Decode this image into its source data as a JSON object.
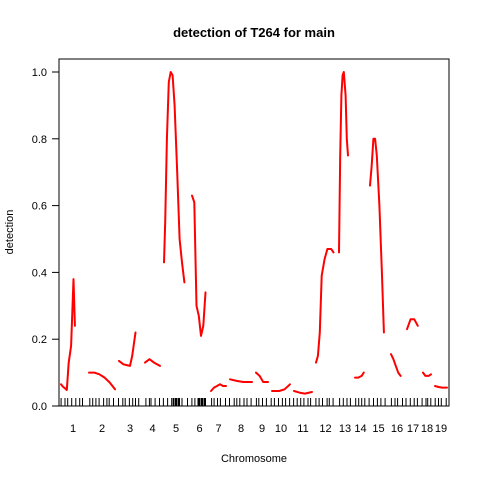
{
  "chart_data": {
    "type": "line",
    "title": "detection of T264 for main",
    "xlabel": "Chromosome",
    "ylabel": "detection",
    "ylim": [
      0,
      1.0
    ],
    "y_ticks": [
      "0.0",
      "0.2",
      "0.4",
      "0.6",
      "0.8",
      "1.0"
    ],
    "y_tick_values": [
      0,
      0.2,
      0.4,
      0.6,
      0.8,
      1.0
    ],
    "categories": [
      "1",
      "2",
      "3",
      "4",
      "5",
      "6",
      "7",
      "8",
      "9",
      "10",
      "11",
      "12",
      "13",
      "14",
      "15",
      "16",
      "17",
      "18",
      "19"
    ],
    "grid": false,
    "legend": "none",
    "series_color": "#ff0000",
    "series": [
      {
        "chromosome": "1",
        "x": [
          0.0,
          0.08,
          0.18,
          0.24,
          0.32,
          0.42,
          0.52,
          0.58
        ],
        "y": [
          0.065,
          0.058,
          0.052,
          0.048,
          0.13,
          0.18,
          0.38,
          0.24
        ]
      },
      {
        "chromosome": "2",
        "x": [
          0.0,
          0.2,
          0.4,
          0.6,
          0.8,
          1.0
        ],
        "y": [
          0.1,
          0.1,
          0.095,
          0.085,
          0.07,
          0.05
        ]
      },
      {
        "chromosome": "3",
        "x": [
          0.0,
          0.2,
          0.5,
          0.6,
          0.75
        ],
        "y": [
          0.135,
          0.125,
          0.12,
          0.15,
          0.22
        ]
      },
      {
        "chromosome": "4",
        "x": [
          0.0,
          0.3,
          0.6,
          1.0
        ],
        "y": [
          0.13,
          0.14,
          0.13,
          0.12
        ]
      },
      {
        "chromosome": "5",
        "x": [
          0.0,
          0.05,
          0.12,
          0.2,
          0.28,
          0.36,
          0.44,
          0.55,
          0.65,
          0.75,
          0.85
        ],
        "y": [
          0.43,
          0.55,
          0.8,
          0.97,
          1.0,
          0.99,
          0.9,
          0.7,
          0.5,
          0.43,
          0.37
        ]
      },
      {
        "chromosome": "6",
        "x": [
          0.0,
          0.15,
          0.3,
          0.45,
          0.6,
          0.75,
          0.9
        ],
        "y": [
          0.63,
          0.61,
          0.3,
          0.27,
          0.21,
          0.24,
          0.34
        ]
      },
      {
        "chromosome": "7",
        "x": [
          0.0,
          0.2,
          0.4,
          0.6,
          0.8,
          1.0
        ],
        "y": [
          0.045,
          0.055,
          0.06,
          0.065,
          0.06,
          0.06
        ]
      },
      {
        "chromosome": "8",
        "x": [
          0.0,
          0.3,
          0.6,
          1.0
        ],
        "y": [
          0.08,
          0.075,
          0.072,
          0.072
        ]
      },
      {
        "chromosome": "9",
        "x": [
          0.0,
          0.3,
          0.6,
          1.0
        ],
        "y": [
          0.1,
          0.09,
          0.072,
          0.072
        ]
      },
      {
        "chromosome": "10",
        "x": [
          0.0,
          0.4,
          0.7,
          1.0
        ],
        "y": [
          0.045,
          0.045,
          0.05,
          0.065
        ]
      },
      {
        "chromosome": "11",
        "x": [
          0.0,
          0.3,
          0.6,
          1.0
        ],
        "y": [
          0.045,
          0.04,
          0.037,
          0.042
        ]
      },
      {
        "chromosome": "12",
        "x": [
          0.0,
          0.1,
          0.2,
          0.3,
          0.45,
          0.6,
          0.8,
          0.92
        ],
        "y": [
          0.13,
          0.15,
          0.22,
          0.39,
          0.44,
          0.47,
          0.47,
          0.46
        ]
      },
      {
        "chromosome": "13",
        "x": [
          0.0,
          0.1,
          0.2,
          0.3,
          0.4,
          0.55,
          0.65,
          0.75
        ],
        "y": [
          0.46,
          0.75,
          0.93,
          0.99,
          1.0,
          0.93,
          0.8,
          0.75
        ]
      },
      {
        "chromosome": "14",
        "x": [
          0.0,
          0.3,
          0.6,
          0.8
        ],
        "y": [
          0.085,
          0.085,
          0.09,
          0.1
        ]
      },
      {
        "chromosome": "15",
        "x": [
          0.0,
          0.1,
          0.2,
          0.3,
          0.4,
          0.55,
          0.7,
          0.82
        ],
        "y": [
          0.66,
          0.72,
          0.8,
          0.8,
          0.75,
          0.6,
          0.4,
          0.22
        ]
      },
      {
        "chromosome": "16",
        "x": [
          0.0,
          0.2,
          0.4,
          0.6,
          0.8
        ],
        "y": [
          0.155,
          0.14,
          0.12,
          0.1,
          0.09
        ]
      },
      {
        "chromosome": "17",
        "x": [
          0.0,
          0.3,
          0.6,
          0.9
        ],
        "y": [
          0.23,
          0.26,
          0.26,
          0.24
        ]
      },
      {
        "chromosome": "18",
        "x": [
          0.0,
          0.3,
          0.7,
          1.0
        ],
        "y": [
          0.1,
          0.09,
          0.09,
          0.095
        ]
      },
      {
        "chromosome": "19",
        "x": [
          0.0,
          0.3,
          0.6,
          1.0
        ],
        "y": [
          0.06,
          0.057,
          0.055,
          0.055
        ]
      }
    ]
  }
}
